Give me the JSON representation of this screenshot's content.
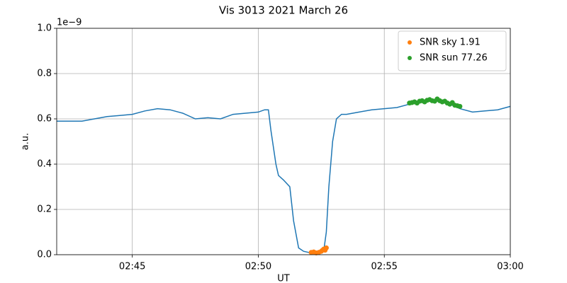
{
  "chart_data": {
    "type": "line",
    "title": "Vis 3013 2021 March 26",
    "x_label": "UT",
    "y_label": "a.u.",
    "y_offset_label": "1e−9",
    "xlim": [
      "02:42:00",
      "03:00:00"
    ],
    "xticks": [
      "02:45",
      "02:50",
      "02:55",
      "03:00"
    ],
    "ylim": [
      0,
      1
    ],
    "yticks": [
      {
        "value": 0,
        "label": "0.0"
      },
      {
        "value": 0.2,
        "label": "0.2"
      },
      {
        "value": 0.4,
        "label": "0.4"
      },
      {
        "value": 0.6,
        "label": "0.6"
      },
      {
        "value": 0.8,
        "label": "0.8"
      },
      {
        "value": 1,
        "label": "1.0"
      }
    ],
    "grid": true,
    "legend_position": "upper right",
    "series": [
      {
        "type": "line",
        "color": "#1f77b4",
        "x": [
          "02:42:00",
          "02:42:30",
          "02:43:00",
          "02:43:30",
          "02:44:00",
          "02:44:30",
          "02:45:00",
          "02:45:30",
          "02:46:00",
          "02:46:30",
          "02:47:00",
          "02:47:30",
          "02:48:00",
          "02:48:30",
          "02:49:00",
          "02:49:30",
          "02:50:00",
          "02:50:15",
          "02:50:24",
          "02:50:30",
          "02:50:42",
          "02:50:48",
          "02:51:00",
          "02:51:15",
          "02:51:24",
          "02:51:36",
          "02:51:48",
          "02:52:00",
          "02:52:12",
          "02:52:24",
          "02:52:36",
          "02:52:42",
          "02:52:48",
          "02:52:57",
          "02:53:06",
          "02:53:18",
          "02:53:30",
          "02:54:00",
          "02:54:30",
          "02:55:00",
          "02:55:30",
          "02:56:00",
          "02:56:30",
          "02:57:00",
          "02:57:30",
          "02:58:00",
          "02:58:30",
          "02:59:00",
          "02:59:30",
          "03:00:00"
        ],
        "values": [
          0.59,
          0.59,
          0.59,
          0.6,
          0.61,
          0.615,
          0.62,
          0.635,
          0.645,
          0.64,
          0.625,
          0.6,
          0.605,
          0.6,
          0.62,
          0.625,
          0.63,
          0.64,
          0.64,
          0.55,
          0.4,
          0.35,
          0.33,
          0.3,
          0.15,
          0.03,
          0.015,
          0.01,
          0.01,
          0.01,
          0.02,
          0.1,
          0.3,
          0.5,
          0.6,
          0.62,
          0.62,
          0.63,
          0.64,
          0.645,
          0.65,
          0.665,
          0.675,
          0.68,
          0.67,
          0.645,
          0.63,
          0.635,
          0.64,
          0.655
        ]
      },
      {
        "type": "scatter",
        "name": "SNR sky 1.91",
        "color": "#ff7f0e",
        "x": [
          "02:52:06",
          "02:52:12",
          "02:52:18",
          "02:52:24",
          "02:52:30",
          "02:52:33",
          "02:52:36",
          "02:52:39",
          "02:52:42"
        ],
        "values": [
          0.01,
          0.012,
          0.008,
          0.01,
          0.015,
          0.02,
          0.025,
          0.02,
          0.03
        ]
      },
      {
        "type": "scatter",
        "name": "SNR sun 77.26",
        "color": "#2ca02c",
        "x": [
          "02:56:00",
          "02:56:06",
          "02:56:12",
          "02:56:18",
          "02:56:24",
          "02:56:30",
          "02:56:36",
          "02:56:42",
          "02:56:48",
          "02:56:54",
          "02:57:00",
          "02:57:06",
          "02:57:12",
          "02:57:18",
          "02:57:24",
          "02:57:30",
          "02:57:36",
          "02:57:42",
          "02:57:48",
          "02:57:54",
          "02:58:00"
        ],
        "values": [
          0.67,
          0.672,
          0.675,
          0.67,
          0.678,
          0.68,
          0.675,
          0.682,
          0.685,
          0.68,
          0.678,
          0.688,
          0.68,
          0.675,
          0.678,
          0.67,
          0.665,
          0.672,
          0.66,
          0.658,
          0.655
        ]
      }
    ]
  }
}
